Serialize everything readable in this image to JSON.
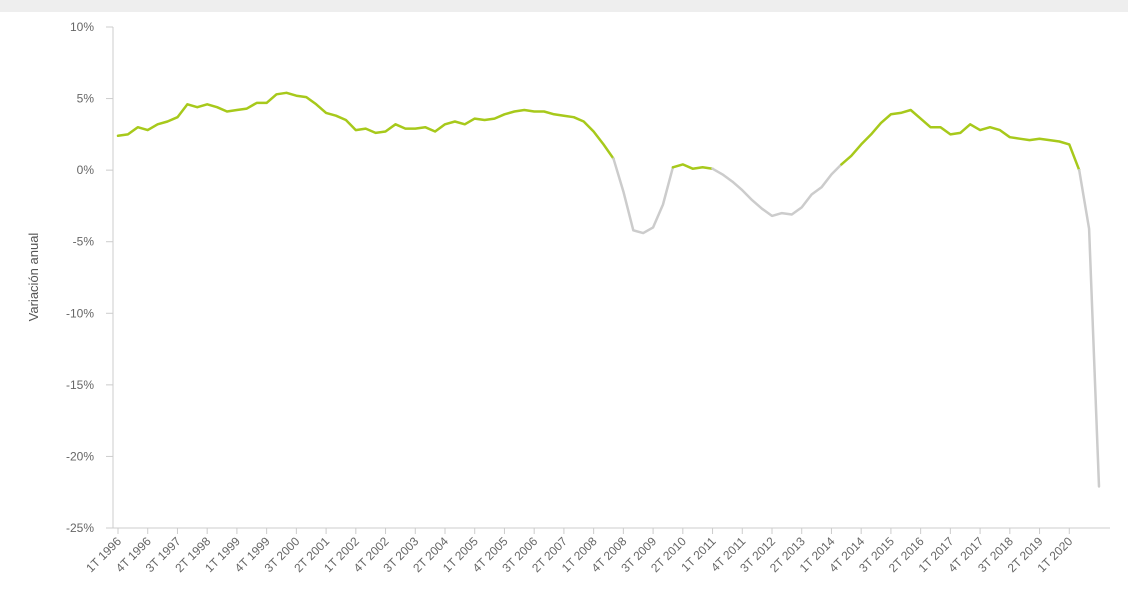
{
  "chart_data": {
    "type": "line",
    "ylabel": "Variación anual",
    "ylim": [
      -25,
      10
    ],
    "y_ticks": [
      "10%",
      "5%",
      "0%",
      "-5%",
      "-10%",
      "-15%",
      "-20%",
      "-25%"
    ],
    "y_tick_values": [
      10,
      5,
      0,
      -5,
      -10,
      -15,
      -20,
      -25
    ],
    "x_tick_labels": [
      "1T 1996",
      "4T 1996",
      "3T 1997",
      "2T 1998",
      "1T 1999",
      "4T 1999",
      "3T 2000",
      "2T 2001",
      "1T 2002",
      "4T 2002",
      "3T 2003",
      "2T 2004",
      "1T 2005",
      "4T 2005",
      "3T 2006",
      "2T 2007",
      "1T 2008",
      "4T 2008",
      "3T 2009",
      "2T 2010",
      "1T 2011",
      "4T 2011",
      "3T 2012",
      "2T 2013",
      "1T 2014",
      "4T 2014",
      "3T 2015",
      "2T 2016",
      "1T 2017",
      "4T 2017",
      "3T 2018",
      "2T 2019",
      "1T 2020"
    ],
    "colors": {
      "positive": "#a7c91b",
      "negative": "#cccccc",
      "axis": "#cccccc"
    },
    "series": [
      {
        "values": [
          2.4,
          2.5,
          3.0,
          2.8,
          3.2,
          3.4,
          3.7,
          4.6,
          4.4,
          4.6,
          4.4,
          4.1,
          4.2,
          4.3,
          4.7,
          4.7,
          5.3,
          5.4,
          5.2,
          5.1,
          4.6,
          4.0,
          3.8,
          3.5,
          2.8,
          2.9,
          2.6,
          2.7,
          3.2,
          2.9,
          2.9,
          3.0,
          2.7,
          3.2,
          3.4,
          3.2,
          3.6,
          3.5,
          3.6,
          3.9,
          4.1,
          4.2,
          4.1,
          4.1,
          3.9,
          3.8,
          3.7,
          3.4,
          2.7,
          1.8,
          0.8,
          -1.5,
          -4.2,
          -4.4,
          -4.0,
          -2.4,
          0.2,
          0.4,
          0.1,
          0.2,
          0.1,
          -0.3,
          -0.8,
          -1.4,
          -2.1,
          -2.7,
          -3.2,
          -3.0,
          -3.1,
          -2.6,
          -1.7,
          -1.2,
          -0.3,
          0.4,
          1.0,
          1.8,
          2.5,
          3.3,
          3.9,
          4.0,
          4.2,
          3.6,
          3.0,
          3.0,
          2.5,
          2.6,
          3.2,
          2.8,
          3.0,
          2.8,
          2.3,
          2.2,
          2.1,
          2.2,
          2.1,
          2.0,
          1.8,
          0.0,
          -4.1,
          -22.1
        ]
      }
    ]
  }
}
